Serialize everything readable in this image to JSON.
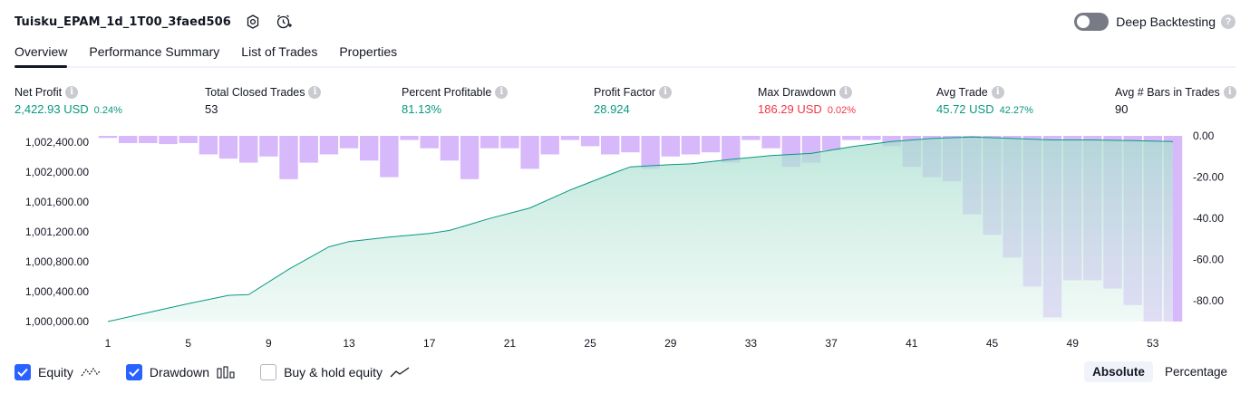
{
  "header": {
    "title": "Tuisku_EPAM_1d_1T00_3faed506",
    "deep_backtesting_label": "Deep Backtesting"
  },
  "tabs": [
    "Overview",
    "Performance Summary",
    "List of Trades",
    "Properties"
  ],
  "metrics": {
    "net_profit": {
      "label": "Net Profit",
      "value": "2,422.93 USD",
      "sub": "0.24%"
    },
    "total_closed_trades": {
      "label": "Total Closed Trades",
      "value": "53"
    },
    "percent_profitable": {
      "label": "Percent Profitable",
      "value": "81.13%"
    },
    "profit_factor": {
      "label": "Profit Factor",
      "value": "28.924"
    },
    "max_drawdown": {
      "label": "Max Drawdown",
      "value": "186.29 USD",
      "sub": "0.02%"
    },
    "avg_trade": {
      "label": "Avg Trade",
      "value": "45.72 USD",
      "sub": "42.27%"
    },
    "avg_bars": {
      "label": "Avg # Bars in Trades",
      "value": "90"
    }
  },
  "colors": {
    "equity_line": "#089981",
    "equity_fill": "#c7ebe1",
    "drawdown_bar": "#d7b8fb",
    "positive": "#089981",
    "negative": "#f23645",
    "accent": "#2962ff"
  },
  "chart_data": {
    "type": "line",
    "x_ticks": [
      "1",
      "5",
      "9",
      "13",
      "17",
      "21",
      "25",
      "29",
      "33",
      "37",
      "41",
      "45",
      "49",
      "53"
    ],
    "y_left_ticks": [
      "1,002,400.00",
      "1,002,000.00",
      "1,001,600.00",
      "1,001,200.00",
      "1,000,800.00",
      "1,000,400.00",
      "1,000,000.00"
    ],
    "y_right_ticks": [
      "0.00",
      "-20.00",
      "-40.00",
      "-60.00",
      "-80.00"
    ],
    "y_left_range": [
      1000000,
      1002400
    ],
    "y_right_range": [
      -90,
      0
    ],
    "x_range": [
      1,
      54
    ],
    "grid": false,
    "series": [
      {
        "name": "Equity",
        "axis": "left",
        "x": [
          1,
          3,
          5,
          7,
          8,
          10,
          12,
          13,
          15,
          17,
          18,
          20,
          22,
          24,
          26,
          27,
          29,
          30,
          32,
          34,
          36,
          38,
          40,
          42,
          44,
          46,
          48,
          50,
          52,
          54
        ],
        "values": [
          1000000,
          1000120,
          1000240,
          1000350,
          1000360,
          1000700,
          1001000,
          1001070,
          1001130,
          1001180,
          1001220,
          1001380,
          1001520,
          1001760,
          1001970,
          1002070,
          1002100,
          1002110,
          1002170,
          1002220,
          1002250,
          1002340,
          1002410,
          1002450,
          1002470,
          1002450,
          1002430,
          1002430,
          1002420,
          1002410
        ]
      },
      {
        "name": "Drawdown",
        "axis": "right",
        "type": "bar",
        "values": [
          -1,
          -3.5,
          -3.5,
          -4,
          -3.5,
          -9,
          -11,
          -13,
          -10,
          -21,
          -13,
          -9,
          -6,
          -12,
          -20,
          -2,
          -6,
          -12,
          -21,
          -6,
          -6,
          -16,
          -9,
          -2,
          -5,
          -9,
          -8,
          -16,
          -10,
          -9,
          -8,
          -13,
          -2,
          -6,
          -15,
          -13,
          -7,
          -2,
          -2,
          -5,
          -15,
          -20,
          -22,
          -38,
          -48,
          -59,
          -73,
          -88,
          -70,
          -70,
          -74,
          -82,
          -90,
          -90
        ]
      }
    ]
  },
  "footer": {
    "equity_label": "Equity",
    "drawdown_label": "Drawdown",
    "buy_hold_label": "Buy & hold equity",
    "absolute_label": "Absolute",
    "percentage_label": "Percentage"
  }
}
